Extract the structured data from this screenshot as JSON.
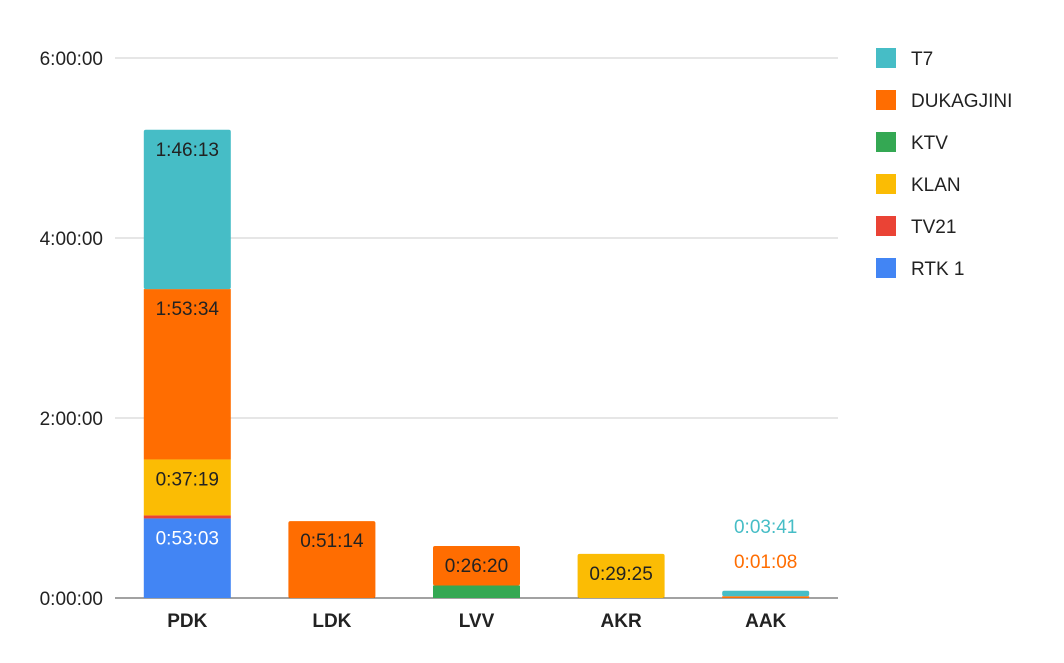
{
  "chart_data": {
    "type": "bar",
    "stacked": true,
    "categories": [
      "PDK",
      "LDK",
      "LVV",
      "AKR",
      "AAK"
    ],
    "y_unit": "seconds",
    "ylim": [
      0,
      21600
    ],
    "yticks": [
      0,
      7200,
      14400,
      21600
    ],
    "ytick_labels": [
      "0:00:00",
      "2:00:00",
      "4:00:00",
      "6:00:00"
    ],
    "grid": true,
    "legend_position": "right",
    "series": [
      {
        "name": "RTK 1",
        "color": "#4285f4",
        "values": [
          3183,
          0,
          0,
          0,
          0
        ],
        "labels": [
          "0:53:03",
          "",
          "",
          "",
          ""
        ],
        "label_colors": [
          "#ffffff",
          "",
          "",
          "",
          ""
        ]
      },
      {
        "name": "TV21",
        "color": "#ea4335",
        "values": [
          120,
          0,
          0,
          0,
          0
        ],
        "labels": [
          "",
          "",
          "",
          "",
          ""
        ],
        "label_colors": [
          "",
          "",
          "",
          "",
          ""
        ]
      },
      {
        "name": "KLAN",
        "color": "#fbbc04",
        "values": [
          2239,
          0,
          0,
          1765,
          0
        ],
        "labels": [
          "0:37:19",
          "",
          "",
          "0:29:25",
          ""
        ],
        "label_colors": [
          "#222222",
          "",
          "",
          "#222222",
          ""
        ]
      },
      {
        "name": "KTV",
        "color": "#34a853",
        "values": [
          0,
          0,
          500,
          0,
          0
        ],
        "labels": [
          "",
          "",
          "",
          "",
          ""
        ],
        "label_colors": [
          "",
          "",
          "",
          "",
          ""
        ]
      },
      {
        "name": "DUKAGJINI",
        "color": "#ff6d01",
        "values": [
          6814,
          3074,
          1580,
          0,
          68
        ],
        "labels": [
          "1:53:34",
          "0:51:14",
          "0:26:20",
          "",
          "0:01:08"
        ],
        "label_colors": [
          "#222222",
          "#222222",
          "#222222",
          "",
          "#ff6d01"
        ]
      },
      {
        "name": "T7",
        "color": "#46bdc6",
        "values": [
          6373,
          0,
          0,
          0,
          221
        ],
        "labels": [
          "1:46:13",
          "",
          "",
          "",
          "0:03:41"
        ],
        "label_colors": [
          "#222222",
          "",
          "",
          "",
          "#46bdc6"
        ]
      }
    ],
    "legend_order": [
      "T7",
      "DUKAGJINI",
      "KTV",
      "KLAN",
      "TV21",
      "RTK 1"
    ],
    "title": "",
    "xlabel": "",
    "ylabel": ""
  }
}
